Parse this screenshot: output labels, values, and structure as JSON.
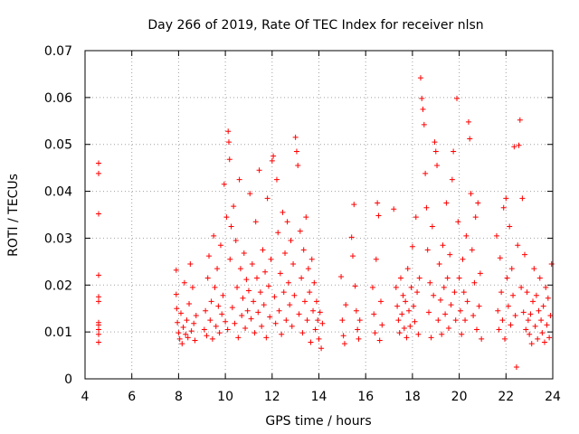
{
  "chart_data": {
    "type": "scatter",
    "title": "Day 266 of 2019, Rate Of TEC Index for receiver nlsn",
    "xlabel": "GPS time / hours",
    "ylabel": "ROTI / TECUs",
    "xlim": [
      4,
      24
    ],
    "ylim": [
      0,
      0.07
    ],
    "xticks": [
      4,
      6,
      8,
      10,
      12,
      14,
      16,
      18,
      20,
      22,
      24
    ],
    "xtick_labels": [
      "4",
      "6",
      "8",
      "10",
      "12",
      "14",
      "16",
      "18",
      "20",
      "22",
      "24"
    ],
    "yticks": [
      0,
      0.01,
      0.02,
      0.03,
      0.04,
      0.05,
      0.06,
      0.07
    ],
    "ytick_labels": [
      "0",
      "0.01",
      "0.02",
      "0.03",
      "0.04",
      "0.05",
      "0.06",
      "0.07"
    ],
    "grid": true,
    "marker": "+",
    "color": "#ff0000",
    "series": [
      {
        "name": "ROTI",
        "points": [
          [
            4.58,
            0.046
          ],
          [
            4.58,
            0.0438
          ],
          [
            4.58,
            0.0352
          ],
          [
            4.58,
            0.0221
          ],
          [
            4.58,
            0.0175
          ],
          [
            4.58,
            0.0165
          ],
          [
            4.58,
            0.012
          ],
          [
            4.58,
            0.0115
          ],
          [
            4.58,
            0.0105
          ],
          [
            4.58,
            0.0095
          ],
          [
            4.58,
            0.0078
          ],
          [
            7.9,
            0.0232
          ],
          [
            7.9,
            0.018
          ],
          [
            7.92,
            0.015
          ],
          [
            7.95,
            0.012
          ],
          [
            8.0,
            0.0098
          ],
          [
            8.05,
            0.0085
          ],
          [
            8.1,
            0.014
          ],
          [
            8.15,
            0.0075
          ],
          [
            8.2,
            0.011
          ],
          [
            8.25,
            0.0205
          ],
          [
            8.3,
            0.0095
          ],
          [
            8.35,
            0.0125
          ],
          [
            8.4,
            0.0088
          ],
          [
            8.45,
            0.016
          ],
          [
            8.5,
            0.0245
          ],
          [
            8.55,
            0.0102
          ],
          [
            8.6,
            0.0195
          ],
          [
            8.65,
            0.0118
          ],
          [
            8.7,
            0.0082
          ],
          [
            8.75,
            0.0135
          ],
          [
            9.1,
            0.0105
          ],
          [
            9.15,
            0.0145
          ],
          [
            9.2,
            0.0092
          ],
          [
            9.25,
            0.0215
          ],
          [
            9.3,
            0.0262
          ],
          [
            9.35,
            0.0125
          ],
          [
            9.4,
            0.0165
          ],
          [
            9.45,
            0.0085
          ],
          [
            9.5,
            0.0305
          ],
          [
            9.55,
            0.0195
          ],
          [
            9.6,
            0.0112
          ],
          [
            9.65,
            0.0235
          ],
          [
            9.7,
            0.0155
          ],
          [
            9.75,
            0.0098
          ],
          [
            9.8,
            0.0285
          ],
          [
            9.85,
            0.0138
          ],
          [
            9.9,
            0.0178
          ],
          [
            9.95,
            0.0415
          ],
          [
            10.0,
            0.0122
          ],
          [
            10.05,
            0.0345
          ],
          [
            10.1,
            0.0105
          ],
          [
            10.12,
            0.0528
          ],
          [
            10.15,
            0.0505
          ],
          [
            10.18,
            0.0468
          ],
          [
            10.2,
            0.0255
          ],
          [
            10.25,
            0.0325
          ],
          [
            10.3,
            0.0152
          ],
          [
            10.35,
            0.0368
          ],
          [
            10.4,
            0.0118
          ],
          [
            10.45,
            0.0295
          ],
          [
            10.5,
            0.0195
          ],
          [
            10.55,
            0.0088
          ],
          [
            10.6,
            0.0425
          ],
          [
            10.65,
            0.0235
          ],
          [
            10.7,
            0.0135
          ],
          [
            10.75,
            0.0172
          ],
          [
            10.8,
            0.0268
          ],
          [
            10.85,
            0.0108
          ],
          [
            10.9,
            0.0212
          ],
          [
            10.95,
            0.0145
          ],
          [
            11.0,
            0.0188
          ],
          [
            11.05,
            0.0395
          ],
          [
            11.1,
            0.0128
          ],
          [
            11.15,
            0.0245
          ],
          [
            11.2,
            0.0165
          ],
          [
            11.25,
            0.0098
          ],
          [
            11.3,
            0.0335
          ],
          [
            11.35,
            0.0215
          ],
          [
            11.4,
            0.0142
          ],
          [
            11.45,
            0.0445
          ],
          [
            11.5,
            0.0185
          ],
          [
            11.55,
            0.0112
          ],
          [
            11.6,
            0.0275
          ],
          [
            11.65,
            0.0158
          ],
          [
            11.7,
            0.0228
          ],
          [
            11.75,
            0.0088
          ],
          [
            11.8,
            0.0385
          ],
          [
            11.85,
            0.0198
          ],
          [
            11.9,
            0.0132
          ],
          [
            11.95,
            0.0255
          ],
          [
            12.0,
            0.0465
          ],
          [
            12.05,
            0.0475
          ],
          [
            12.1,
            0.0175
          ],
          [
            12.15,
            0.0118
          ],
          [
            12.2,
            0.0425
          ],
          [
            12.25,
            0.0312
          ],
          [
            12.3,
            0.0145
          ],
          [
            12.35,
            0.0225
          ],
          [
            12.4,
            0.0095
          ],
          [
            12.45,
            0.0355
          ],
          [
            12.5,
            0.0185
          ],
          [
            12.55,
            0.0268
          ],
          [
            12.6,
            0.0125
          ],
          [
            12.65,
            0.0335
          ],
          [
            12.7,
            0.0205
          ],
          [
            12.75,
            0.0158
          ],
          [
            12.8,
            0.0295
          ],
          [
            12.85,
            0.0112
          ],
          [
            12.9,
            0.0245
          ],
          [
            12.95,
            0.0178
          ],
          [
            13.0,
            0.0515
          ],
          [
            13.05,
            0.0485
          ],
          [
            13.1,
            0.0455
          ],
          [
            13.15,
            0.0138
          ],
          [
            13.2,
            0.0315
          ],
          [
            13.25,
            0.0215
          ],
          [
            13.3,
            0.0098
          ],
          [
            13.35,
            0.0275
          ],
          [
            13.4,
            0.0165
          ],
          [
            13.45,
            0.0345
          ],
          [
            13.5,
            0.0125
          ],
          [
            13.55,
            0.0235
          ],
          [
            13.6,
            0.0185
          ],
          [
            13.65,
            0.0078
          ],
          [
            13.7,
            0.0255
          ],
          [
            13.75,
            0.0145
          ],
          [
            13.8,
            0.0205
          ],
          [
            13.85,
            0.0105
          ],
          [
            13.9,
            0.0165
          ],
          [
            13.95,
            0.0125
          ],
          [
            14.0,
            0.0085
          ],
          [
            14.05,
            0.0142
          ],
          [
            14.1,
            0.0065
          ],
          [
            14.15,
            0.0118
          ],
          [
            14.95,
            0.0218
          ],
          [
            15.0,
            0.0125
          ],
          [
            15.05,
            0.0092
          ],
          [
            15.1,
            0.0075
          ],
          [
            15.15,
            0.0158
          ],
          [
            15.4,
            0.0302
          ],
          [
            15.45,
            0.0262
          ],
          [
            15.5,
            0.0372
          ],
          [
            15.55,
            0.0198
          ],
          [
            15.6,
            0.0145
          ],
          [
            15.65,
            0.0105
          ],
          [
            15.7,
            0.0085
          ],
          [
            15.75,
            0.0125
          ],
          [
            16.3,
            0.0195
          ],
          [
            16.35,
            0.0138
          ],
          [
            16.4,
            0.0098
          ],
          [
            16.45,
            0.0255
          ],
          [
            16.5,
            0.0375
          ],
          [
            16.55,
            0.0348
          ],
          [
            16.6,
            0.0082
          ],
          [
            16.65,
            0.0165
          ],
          [
            16.7,
            0.0115
          ],
          [
            17.2,
            0.0362
          ],
          [
            17.3,
            0.0195
          ],
          [
            17.35,
            0.0155
          ],
          [
            17.4,
            0.0125
          ],
          [
            17.45,
            0.0098
          ],
          [
            17.5,
            0.0215
          ],
          [
            17.55,
            0.0138
          ],
          [
            17.6,
            0.0178
          ],
          [
            17.65,
            0.0108
          ],
          [
            17.7,
            0.0165
          ],
          [
            17.75,
            0.0088
          ],
          [
            17.8,
            0.0235
          ],
          [
            17.85,
            0.0145
          ],
          [
            17.9,
            0.0112
          ],
          [
            17.95,
            0.0195
          ],
          [
            18.0,
            0.0282
          ],
          [
            18.05,
            0.0155
          ],
          [
            18.1,
            0.0122
          ],
          [
            18.15,
            0.0345
          ],
          [
            18.2,
            0.0185
          ],
          [
            18.25,
            0.0095
          ],
          [
            18.3,
            0.0215
          ],
          [
            18.35,
            0.0642
          ],
          [
            18.4,
            0.0598
          ],
          [
            18.45,
            0.0575
          ],
          [
            18.5,
            0.0542
          ],
          [
            18.55,
            0.0438
          ],
          [
            18.6,
            0.0365
          ],
          [
            18.65,
            0.0275
          ],
          [
            18.7,
            0.0142
          ],
          [
            18.75,
            0.0205
          ],
          [
            18.8,
            0.0088
          ],
          [
            18.85,
            0.0325
          ],
          [
            18.9,
            0.0178
          ],
          [
            18.95,
            0.0505
          ],
          [
            19.0,
            0.0485
          ],
          [
            19.05,
            0.0455
          ],
          [
            19.1,
            0.0125
          ],
          [
            19.15,
            0.0245
          ],
          [
            19.2,
            0.0168
          ],
          [
            19.25,
            0.0095
          ],
          [
            19.3,
            0.0285
          ],
          [
            19.35,
            0.0195
          ],
          [
            19.4,
            0.0138
          ],
          [
            19.45,
            0.0375
          ],
          [
            19.5,
            0.0215
          ],
          [
            19.55,
            0.0108
          ],
          [
            19.6,
            0.0265
          ],
          [
            19.65,
            0.0158
          ],
          [
            19.7,
            0.0425
          ],
          [
            19.75,
            0.0485
          ],
          [
            19.8,
            0.0185
          ],
          [
            19.85,
            0.0125
          ],
          [
            19.9,
            0.0598
          ],
          [
            19.95,
            0.0335
          ],
          [
            20.0,
            0.0215
          ],
          [
            20.05,
            0.0145
          ],
          [
            20.1,
            0.0095
          ],
          [
            20.15,
            0.0255
          ],
          [
            20.2,
            0.0185
          ],
          [
            20.25,
            0.0125
          ],
          [
            20.3,
            0.0305
          ],
          [
            20.35,
            0.0165
          ],
          [
            20.4,
            0.0548
          ],
          [
            20.45,
            0.0512
          ],
          [
            20.5,
            0.0395
          ],
          [
            20.55,
            0.0275
          ],
          [
            20.6,
            0.0135
          ],
          [
            20.65,
            0.0205
          ],
          [
            20.7,
            0.0345
          ],
          [
            20.75,
            0.0105
          ],
          [
            20.8,
            0.0375
          ],
          [
            20.85,
            0.0155
          ],
          [
            20.9,
            0.0225
          ],
          [
            20.95,
            0.0085
          ],
          [
            21.6,
            0.0305
          ],
          [
            21.65,
            0.0145
          ],
          [
            21.7,
            0.0105
          ],
          [
            21.75,
            0.0258
          ],
          [
            21.8,
            0.0185
          ],
          [
            21.85,
            0.0125
          ],
          [
            21.9,
            0.0365
          ],
          [
            21.95,
            0.0085
          ],
          [
            22.0,
            0.0385
          ],
          [
            22.05,
            0.0215
          ],
          [
            22.1,
            0.0155
          ],
          [
            22.15,
            0.0325
          ],
          [
            22.2,
            0.0115
          ],
          [
            22.25,
            0.0235
          ],
          [
            22.3,
            0.0178
          ],
          [
            22.35,
            0.0495
          ],
          [
            22.4,
            0.0135
          ],
          [
            22.45,
            0.0025
          ],
          [
            22.5,
            0.0285
          ],
          [
            22.55,
            0.0498
          ],
          [
            22.6,
            0.0552
          ],
          [
            22.65,
            0.0195
          ],
          [
            22.7,
            0.0385
          ],
          [
            22.75,
            0.0142
          ],
          [
            22.8,
            0.0265
          ],
          [
            22.85,
            0.0105
          ],
          [
            22.9,
            0.0185
          ],
          [
            22.95,
            0.0125
          ],
          [
            23.0,
            0.0095
          ],
          [
            23.05,
            0.0138
          ],
          [
            23.1,
            0.0075
          ],
          [
            23.15,
            0.0165
          ],
          [
            23.2,
            0.0235
          ],
          [
            23.25,
            0.0112
          ],
          [
            23.3,
            0.0178
          ],
          [
            23.35,
            0.0085
          ],
          [
            23.4,
            0.0145
          ],
          [
            23.45,
            0.0215
          ],
          [
            23.5,
            0.0125
          ],
          [
            23.55,
            0.0098
          ],
          [
            23.6,
            0.0155
          ],
          [
            23.65,
            0.0078
          ],
          [
            23.7,
            0.0195
          ],
          [
            23.75,
            0.0115
          ],
          [
            23.8,
            0.0172
          ],
          [
            23.85,
            0.0088
          ],
          [
            23.9,
            0.0135
          ],
          [
            23.95,
            0.0245
          ]
        ]
      }
    ]
  }
}
